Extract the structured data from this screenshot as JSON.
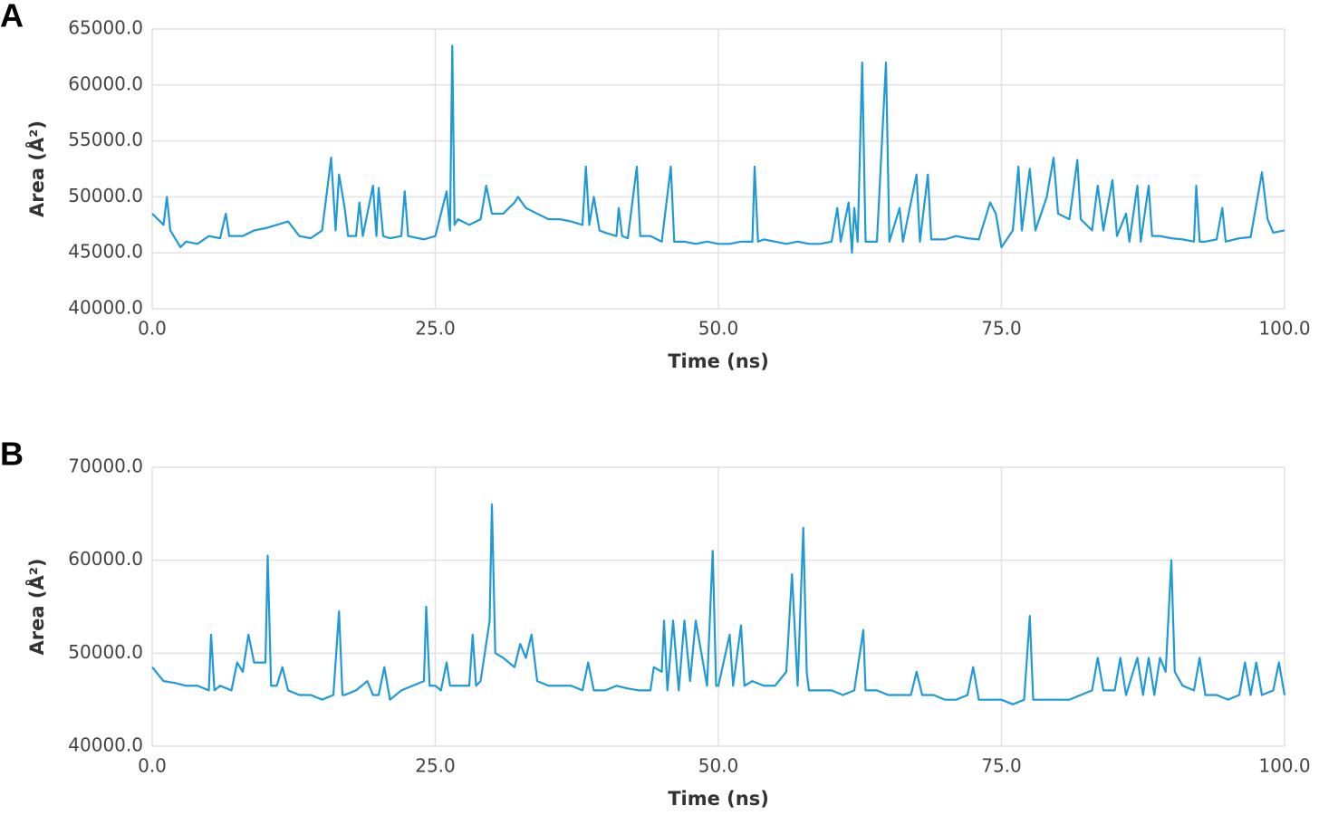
{
  "chart_data": [
    {
      "type": "line",
      "panel_label": "A",
      "x_label": "Time (ns)",
      "y_label": "Area (Å²)",
      "color": "#1f9ad6",
      "grid": true,
      "xlim": [
        0,
        100
      ],
      "xticks": [
        {
          "value": 0,
          "label": "0.0"
        },
        {
          "value": 25,
          "label": "25.0"
        },
        {
          "value": 50,
          "label": "50.0"
        },
        {
          "value": 75,
          "label": "75.0"
        },
        {
          "value": 100,
          "label": "100.0"
        }
      ],
      "ylim": [
        40000,
        65000
      ],
      "yticks": [
        {
          "value": 40000,
          "label": "40000.0"
        },
        {
          "value": 45000,
          "label": "45000.0"
        },
        {
          "value": 50000,
          "label": "50000.0"
        },
        {
          "value": 55000,
          "label": "55000.0"
        },
        {
          "value": 60000,
          "label": "60000.0"
        },
        {
          "value": 65000,
          "label": "65000.0"
        }
      ],
      "x": [
        0,
        1,
        1.3,
        1.6,
        2.5,
        3,
        4,
        5,
        6,
        6.5,
        6.8,
        8,
        9,
        10,
        11,
        12,
        13,
        14,
        15,
        15.5,
        15.8,
        16.2,
        16.5,
        17,
        17.3,
        18,
        18.3,
        18.6,
        19.5,
        19.8,
        20,
        20.4,
        21,
        22,
        22.3,
        22.6,
        24,
        25,
        26,
        26.3,
        26.5,
        26.7,
        27,
        28,
        29,
        29.5,
        30,
        31,
        32,
        32.3,
        33,
        34,
        35,
        36,
        37,
        38,
        38.3,
        38.6,
        39,
        39.5,
        40,
        41,
        41.2,
        41.5,
        42,
        42.8,
        43.1,
        44,
        45,
        45.8,
        46.1,
        47,
        48,
        49,
        50,
        51,
        52,
        53,
        53.2,
        53.5,
        54,
        55,
        56,
        57,
        58,
        59,
        60,
        60.5,
        60.8,
        61.5,
        61.8,
        62,
        62.3,
        62.7,
        63,
        64,
        64.8,
        65.1,
        66,
        66.3,
        67.5,
        67.8,
        68.5,
        68.8,
        70,
        71,
        72,
        73,
        74,
        74.5,
        75,
        76,
        76.5,
        76.8,
        77.5,
        78,
        79,
        79.6,
        80,
        81,
        81.7,
        82,
        83,
        83.5,
        84,
        84.8,
        85.2,
        86,
        86.3,
        87,
        87.3,
        88,
        88.3,
        89,
        90,
        91,
        92,
        92.2,
        92.5,
        93,
        94,
        94.5,
        94.8,
        96,
        97,
        97.8,
        98,
        98.5,
        99,
        100
      ],
      "values": [
        48500,
        47500,
        50000,
        47000,
        45500,
        46000,
        45800,
        46500,
        46300,
        48500,
        46500,
        46500,
        47000,
        47200,
        47500,
        47800,
        46500,
        46300,
        47000,
        51000,
        53500,
        47000,
        52000,
        49000,
        46500,
        46500,
        49500,
        46500,
        51000,
        46500,
        50800,
        46500,
        46300,
        46500,
        50500,
        46500,
        46200,
        46500,
        50500,
        47000,
        63500,
        47500,
        48000,
        47500,
        48000,
        51000,
        48500,
        48500,
        49500,
        50000,
        49000,
        48500,
        48000,
        48000,
        47800,
        47500,
        52700,
        47500,
        50000,
        47000,
        46800,
        46500,
        49000,
        46500,
        46300,
        52700,
        46500,
        46500,
        46000,
        52700,
        46000,
        46000,
        45800,
        46000,
        45800,
        45800,
        46000,
        46000,
        52700,
        46000,
        46200,
        46000,
        45800,
        46000,
        45800,
        45800,
        46000,
        49000,
        46000,
        49500,
        45000,
        49000,
        46000,
        62000,
        46000,
        46000,
        62000,
        46000,
        49000,
        46000,
        52000,
        46000,
        52000,
        46200,
        46200,
        46500,
        46300,
        46200,
        49500,
        48500,
        45500,
        47000,
        52700,
        47000,
        52500,
        47000,
        50000,
        53500,
        48500,
        48000,
        53300,
        48000,
        47000,
        51000,
        47000,
        51500,
        46500,
        48500,
        46000,
        51000,
        46000,
        51000,
        46500,
        46500,
        46300,
        46200,
        46000,
        51000,
        46000,
        46000,
        46200,
        49000,
        46000,
        46300,
        46400,
        51000,
        52200,
        48000,
        46800,
        47000
      ]
    },
    {
      "type": "line",
      "panel_label": "B",
      "x_label": "Time (ns)",
      "y_label": "Area (Å²)",
      "color": "#1f9ad6",
      "grid": true,
      "xlim": [
        0,
        100
      ],
      "xticks": [
        {
          "value": 0,
          "label": "0.0"
        },
        {
          "value": 25,
          "label": "25.0"
        },
        {
          "value": 50,
          "label": "50.0"
        },
        {
          "value": 75,
          "label": "75.0"
        },
        {
          "value": 100,
          "label": "100.0"
        }
      ],
      "ylim": [
        40000,
        70000
      ],
      "yticks": [
        {
          "value": 40000,
          "label": "40000.0"
        },
        {
          "value": 50000,
          "label": "50000.0"
        },
        {
          "value": 60000,
          "label": "60000.0"
        },
        {
          "value": 70000,
          "label": "70000.0"
        }
      ],
      "x": [
        0,
        1,
        2,
        3,
        4,
        5,
        5.2,
        5.5,
        6,
        7,
        7.5,
        8,
        8.5,
        9,
        10,
        10.2,
        10.5,
        11,
        11.5,
        12,
        13,
        14,
        15,
        16,
        16.5,
        16.8,
        17,
        18,
        19,
        19.5,
        20,
        20.5,
        21,
        22,
        23,
        24,
        24.2,
        24.5,
        25,
        25.5,
        26,
        26.3,
        27,
        28,
        28.3,
        28.6,
        29,
        29.8,
        30,
        30.3,
        31,
        32,
        32.5,
        33,
        33.5,
        34,
        35,
        36,
        37,
        38,
        38.5,
        39,
        40,
        41,
        42,
        43,
        44,
        44.3,
        45,
        45.2,
        45.5,
        46,
        46.5,
        47,
        47.5,
        48,
        49,
        49.5,
        49.8,
        50,
        51,
        51.3,
        52,
        52.3,
        53,
        54,
        55,
        56,
        56.5,
        57,
        57.5,
        57.8,
        58,
        59,
        60,
        61,
        62,
        62.8,
        63,
        64,
        65,
        66,
        67,
        67.5,
        68,
        69,
        70,
        71,
        72,
        72.5,
        73,
        74,
        75,
        76,
        77,
        77.5,
        77.8,
        78,
        80,
        81,
        82,
        83,
        83.5,
        84,
        85,
        85.5,
        86,
        87,
        87.5,
        88,
        88.5,
        89,
        89.5,
        90,
        90.3,
        91,
        92,
        92.5,
        93,
        94,
        95,
        96,
        96.5,
        97,
        97.5,
        98,
        99,
        99.5,
        100
      ],
      "values": [
        48500,
        47000,
        46800,
        46500,
        46500,
        46000,
        52000,
        46000,
        46500,
        46000,
        49000,
        48000,
        52000,
        49000,
        49000,
        60500,
        46500,
        46500,
        48500,
        46000,
        45500,
        45500,
        45000,
        45500,
        54500,
        45500,
        45500,
        46000,
        47000,
        45500,
        45500,
        48500,
        45000,
        46000,
        46500,
        47000,
        55000,
        46500,
        46500,
        46000,
        49000,
        46500,
        46500,
        46500,
        52000,
        46500,
        47000,
        53500,
        66000,
        50000,
        49500,
        48500,
        51000,
        49500,
        52000,
        47000,
        46500,
        46500,
        46500,
        46000,
        49000,
        46000,
        46000,
        46500,
        46200,
        46000,
        46000,
        48500,
        48000,
        53500,
        46000,
        53500,
        46000,
        53500,
        47000,
        53500,
        46500,
        61000,
        46500,
        46500,
        52000,
        46500,
        53000,
        46500,
        47000,
        46500,
        46500,
        48000,
        58500,
        46500,
        63500,
        48000,
        46000,
        46000,
        46000,
        45500,
        46000,
        52500,
        46000,
        46000,
        45500,
        45500,
        45500,
        48000,
        45500,
        45500,
        45000,
        45000,
        45500,
        48500,
        45000,
        45000,
        45000,
        44500,
        45000,
        54000,
        45000,
        45000,
        45000,
        45000,
        45500,
        46000,
        49500,
        46000,
        46000,
        49500,
        45500,
        49500,
        45500,
        49500,
        45500,
        49500,
        48000,
        60000,
        48000,
        46500,
        46000,
        49500,
        45500,
        45500,
        45000,
        45500,
        49000,
        45500,
        49000,
        45500,
        46000,
        49000,
        45500
      ]
    }
  ]
}
